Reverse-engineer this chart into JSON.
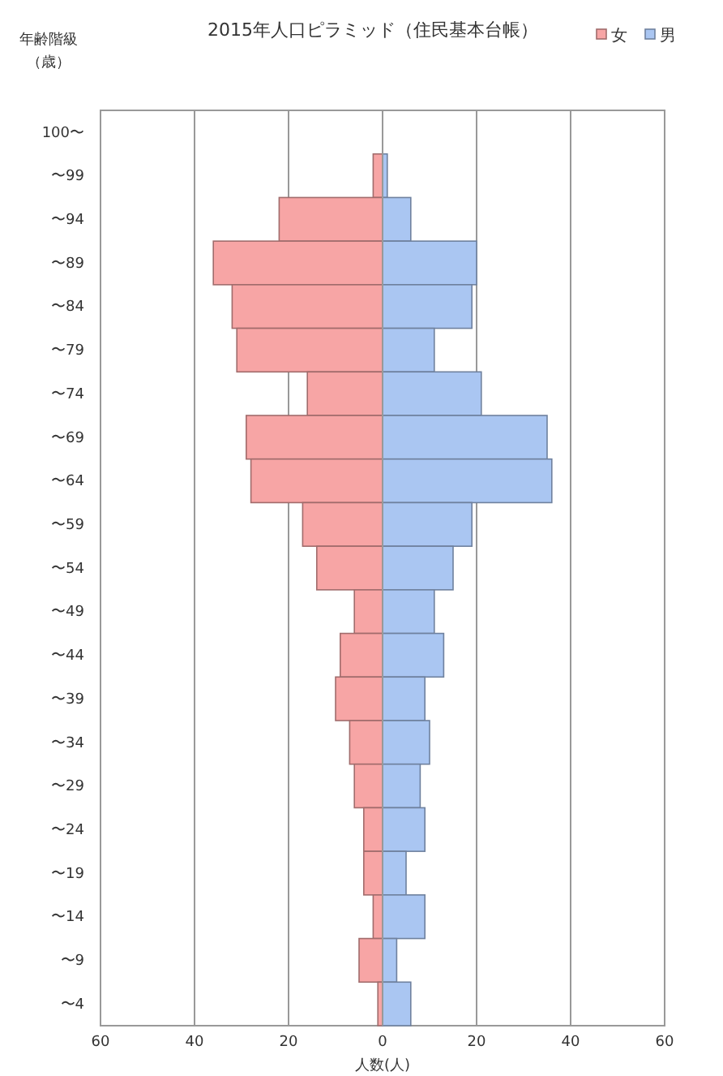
{
  "chart_data": {
    "type": "bar",
    "orientation": "horizontal",
    "stacked": true,
    "title": "2015年人口ピラミッド（住民基本台帳）",
    "xlabel": "人数(人)",
    "ylabel": "年齢階級（歳）",
    "categories": [
      "100〜",
      "〜99",
      "〜94",
      "〜89",
      "〜84",
      "〜79",
      "〜74",
      "〜69",
      "〜64",
      "〜59",
      "〜54",
      "〜49",
      "〜44",
      "〜39",
      "〜34",
      "〜29",
      "〜24",
      "〜19",
      "〜14",
      "〜9",
      "〜4"
    ],
    "series": [
      {
        "name": "女",
        "color": "#f7a5a5",
        "values": [
          0,
          -2,
          -22,
          -36,
          -32,
          -31,
          -16,
          -29,
          -28,
          -17,
          -14,
          -6,
          -9,
          -10,
          -7,
          -6,
          -4,
          -4,
          -2,
          -5,
          -1
        ]
      },
      {
        "name": "男",
        "color": "#aac6f2",
        "values": [
          0,
          1,
          6,
          20,
          19,
          11,
          21,
          35,
          36,
          19,
          15,
          11,
          13,
          9,
          10,
          8,
          9,
          5,
          9,
          3,
          6
        ]
      }
    ],
    "xlim": [
      -60,
      60
    ],
    "xticks": [
      {
        "value": -60,
        "label": "60"
      },
      {
        "value": -40,
        "label": "40"
      },
      {
        "value": -20,
        "label": "20"
      },
      0,
      20,
      40,
      60
    ],
    "grid": "x",
    "legend": "top right"
  }
}
